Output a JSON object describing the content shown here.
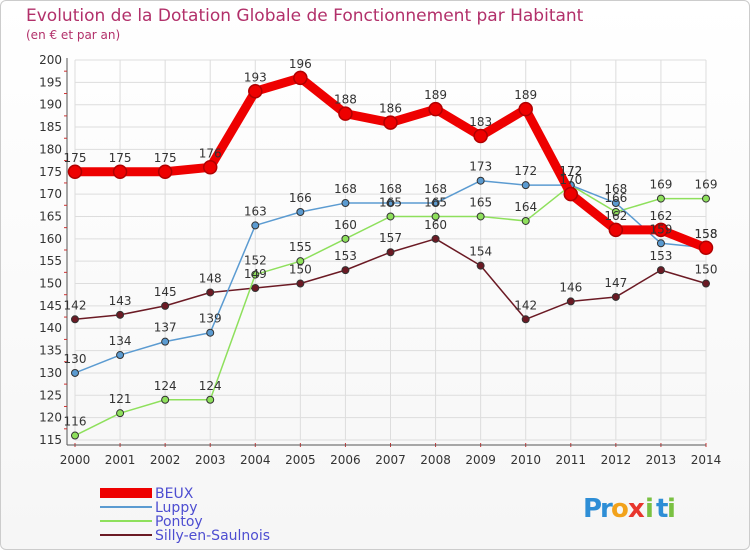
{
  "chart_data": {
    "type": "line",
    "title": "Evolution de la Dotation Globale de Fonctionnement par Habitant",
    "subtitle": "(en € et par an)",
    "xlabel": "",
    "ylabel": "",
    "x": [
      2000,
      2001,
      2002,
      2003,
      2004,
      2005,
      2006,
      2007,
      2008,
      2009,
      2010,
      2011,
      2012,
      2013,
      2014
    ],
    "ylim": [
      115,
      200
    ],
    "yticks": [
      115,
      120,
      125,
      130,
      135,
      140,
      145,
      150,
      155,
      160,
      165,
      170,
      175,
      180,
      185,
      190,
      195,
      200
    ],
    "grid": true,
    "legend_position": "bottom-left",
    "series": [
      {
        "name": "Silly-en-Saulnois",
        "color": "#6b1a24",
        "values": [
          142,
          143,
          145,
          148,
          149,
          150,
          153,
          157,
          160,
          154,
          142,
          146,
          147,
          153,
          150
        ]
      },
      {
        "name": "Pontoy",
        "color": "#8ee05c",
        "values": [
          116,
          121,
          124,
          124,
          152,
          155,
          160,
          165,
          165,
          165,
          164,
          172,
          166,
          169,
          169
        ]
      },
      {
        "name": "Luppy",
        "color": "#5b9bd1",
        "values": [
          130,
          134,
          137,
          139,
          163,
          166,
          168,
          168,
          168,
          173,
          172,
          172,
          168,
          159,
          158
        ]
      },
      {
        "name": "BEUX",
        "color": "#ee0000",
        "values": [
          175,
          175,
          175,
          176,
          193,
          196,
          188,
          186,
          189,
          183,
          189,
          170,
          162,
          162,
          158
        ]
      }
    ],
    "legend": [
      "BEUX",
      "Luppy",
      "Pontoy",
      "Silly-en-Saulnois"
    ]
  },
  "logo": {
    "text": "Proxiti",
    "letters": [
      "P",
      "r",
      "o",
      "x",
      "i",
      "t",
      "i"
    ]
  }
}
